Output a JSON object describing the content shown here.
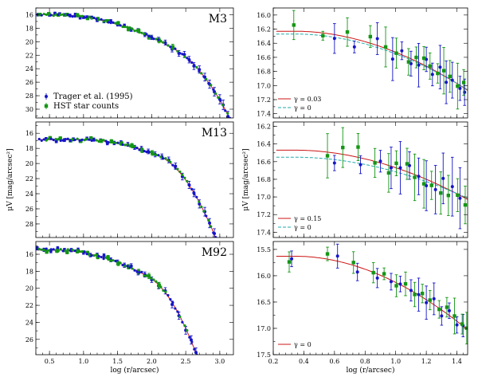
{
  "colors": {
    "trager": "#1515c8",
    "hst": "#149614",
    "fit1": "#cc1414",
    "fit2": "#22aaaa",
    "axis": "#000000"
  },
  "chart_data": [
    {
      "id": "left-m3",
      "type": "scatter",
      "title": "M3",
      "xlim": [
        0.3,
        3.2
      ],
      "ylim": [
        31.3,
        15.0
      ],
      "yticks": [
        16,
        18,
        20,
        22,
        24,
        26,
        28,
        30
      ],
      "ylabels": [
        "16",
        "18",
        "20",
        "22",
        "24",
        "26",
        "28",
        "30"
      ],
      "xticks": [
        0.5,
        1.0,
        1.5,
        2.0,
        2.5,
        3.0
      ],
      "xlabels": [],
      "legend": {
        "trager": "Trager et al. (1995)",
        "hst": "HST star counts"
      },
      "profile": {
        "mu0": 16.0,
        "rc": 0.55,
        "rt": 3.25,
        "slope": 8.0
      },
      "trager_x": [
        0.33,
        0.5,
        0.58,
        0.65,
        0.72,
        0.8,
        0.88,
        0.95,
        1.0,
        1.05,
        1.12,
        1.2,
        1.3,
        1.4,
        1.5,
        1.6,
        1.7,
        1.8,
        1.9,
        2.0,
        2.1,
        2.2,
        2.3,
        2.4,
        2.48,
        2.55,
        2.62,
        2.7,
        2.78,
        2.85,
        2.92,
        3.0,
        3.05,
        3.12
      ],
      "hst_x": [
        0.35,
        0.48,
        0.62,
        0.75,
        0.9,
        1.05,
        1.2,
        1.35,
        1.5,
        1.65,
        1.8,
        1.95,
        2.1,
        2.3
      ],
      "fit": [
        {
          "label": "",
          "color": "fit1"
        }
      ]
    },
    {
      "id": "left-m13",
      "type": "scatter",
      "title": "M13",
      "xlim": [
        0.3,
        3.2
      ],
      "ylim": [
        29.8,
        14.5
      ],
      "yticks": [
        16,
        18,
        20,
        22,
        24,
        26,
        28
      ],
      "ylabels": [
        "16",
        "18",
        "20",
        "22",
        "24",
        "26",
        "28"
      ],
      "xticks": [
        0.5,
        1.0,
        1.5,
        2.0,
        2.5,
        3.0
      ],
      "xlabels": [],
      "ylabel": "μV [mag/arcsec²]",
      "profile": {
        "mu0": 16.85,
        "rc": 0.95,
        "rt": 3.0,
        "slope": 10.5
      },
      "trager_x": [
        0.45,
        0.6,
        0.72,
        0.85,
        0.95,
        1.05,
        1.15,
        1.25,
        1.35,
        1.45,
        1.55,
        1.65,
        1.75,
        1.85,
        1.95,
        2.05,
        2.15,
        2.25,
        2.35,
        2.45,
        2.55,
        2.62,
        2.7,
        2.78,
        2.85,
        2.92,
        2.98
      ],
      "hst_x": [
        0.5,
        0.65,
        0.8,
        0.95,
        1.1,
        1.25,
        1.4,
        1.55,
        1.7,
        1.85,
        2.0
      ],
      "fit": [
        {
          "label": "",
          "color": "fit1"
        }
      ]
    },
    {
      "id": "left-m92",
      "type": "scatter",
      "title": "M92",
      "xlim": [
        0.3,
        3.2
      ],
      "ylim": [
        27.8,
        14.5
      ],
      "yticks": [
        16,
        18,
        20,
        22,
        24,
        26
      ],
      "ylabels": [
        "16",
        "18",
        "20",
        "22",
        "24",
        "26"
      ],
      "xticks": [
        0.5,
        1.0,
        1.5,
        2.0,
        2.5,
        3.0
      ],
      "xlabels": [
        "0.5",
        "1.0",
        "1.5",
        "2.0",
        "2.5",
        "3.0"
      ],
      "xlabel": "log (r/arcsec)",
      "profile": {
        "mu0": 15.5,
        "rc": 0.55,
        "rt": 2.85,
        "slope": 11.5
      },
      "trager_x": [
        0.32,
        0.42,
        0.52,
        0.62,
        0.72,
        0.82,
        0.92,
        1.0,
        1.1,
        1.2,
        1.3,
        1.4,
        1.5,
        1.6,
        1.7,
        1.8,
        1.9,
        2.0,
        2.1,
        2.2,
        2.3,
        2.4,
        2.5,
        2.58,
        2.65,
        2.72
      ],
      "hst_x": [
        0.45,
        0.6,
        0.75,
        0.9,
        1.05,
        1.2,
        1.35,
        1.5,
        1.65,
        1.8,
        1.95,
        2.1
      ],
      "fit": [
        {
          "label": "",
          "color": "fit1"
        }
      ]
    },
    {
      "id": "right-m3",
      "type": "scatter",
      "xlim": [
        0.2,
        1.47
      ],
      "ylim": [
        17.46,
        15.9
      ],
      "yticks": [
        16.0,
        16.2,
        16.4,
        16.6,
        16.8,
        17.0,
        17.2,
        17.4
      ],
      "ylabels": [
        "16.0",
        "16.2",
        "16.4",
        "16.6",
        "16.8",
        "17.0",
        "17.2",
        "17.4"
      ],
      "xticks": [
        0.2,
        0.4,
        0.6,
        0.8,
        1.0,
        1.2,
        1.4
      ],
      "xlabels": [],
      "fit": [
        {
          "label": "γ = 0.03",
          "color": "fit1",
          "y0": 16.23,
          "slope": 0.9
        },
        {
          "label": "γ = 0",
          "color": "fit2",
          "y0": 16.27,
          "slope": 0.85
        }
      ],
      "trager_x": [
        0.6,
        0.73,
        0.88,
        0.98,
        1.04,
        1.1,
        1.15,
        1.2,
        1.24,
        1.29,
        1.33,
        1.37,
        1.42,
        1.45
      ],
      "hst_x": [
        0.33,
        0.52,
        0.68,
        0.83,
        0.93,
        1.0,
        1.08,
        1.13,
        1.18,
        1.22,
        1.27,
        1.31,
        1.35,
        1.4,
        1.44
      ]
    },
    {
      "id": "right-m13",
      "type": "scatter",
      "xlim": [
        0.2,
        1.47
      ],
      "ylim": [
        17.46,
        16.15
      ],
      "yticks": [
        16.2,
        16.4,
        16.6,
        16.8,
        17.0,
        17.2,
        17.4
      ],
      "ylabels": [
        "16.2",
        "16.4",
        "16.6",
        "16.8",
        "17.0",
        "17.2",
        "17.4"
      ],
      "xticks": [
        0.2,
        0.4,
        0.6,
        0.8,
        1.0,
        1.2,
        1.4
      ],
      "xlabels": [],
      "ylabel": "μV [mag/arcsec²]",
      "fit": [
        {
          "label": "γ = 0.15",
          "color": "fit1",
          "y0": 16.47,
          "slope": 0.6
        },
        {
          "label": "γ = 0",
          "color": "fit2",
          "y0": 16.55,
          "slope": 0.5
        }
      ],
      "trager_x": [
        0.6,
        0.77,
        0.9,
        0.97,
        1.03,
        1.09,
        1.15,
        1.2,
        1.26,
        1.31,
        1.37,
        1.42
      ],
      "hst_x": [
        0.55,
        0.65,
        0.75,
        0.86,
        0.95,
        1.0,
        1.07,
        1.12,
        1.18,
        1.23,
        1.29,
        1.34,
        1.4,
        1.45
      ]
    },
    {
      "id": "right-m92",
      "type": "scatter",
      "xlim": [
        0.2,
        1.47
      ],
      "ylim": [
        17.5,
        15.35
      ],
      "yticks": [
        15.5,
        16.0,
        16.5,
        17.0,
        17.5
      ],
      "ylabels": [
        "15.5",
        "16.0",
        "16.5",
        "17.0",
        "17.5"
      ],
      "xticks": [
        0.2,
        0.4,
        0.6,
        0.8,
        1.0,
        1.2,
        1.4
      ],
      "xlabels": [
        "0.2",
        "0.4",
        "0.6",
        "0.8",
        "1.0",
        "1.2",
        "1.4"
      ],
      "xlabel": "log (r/arcsec)",
      "fit": [
        {
          "label": "γ = 0",
          "color": "fit1",
          "y0": 15.63,
          "slope": 1.5
        }
      ],
      "trager_x": [
        0.32,
        0.62,
        0.75,
        0.88,
        0.97,
        1.03,
        1.1,
        1.15,
        1.2,
        1.25,
        1.3,
        1.35,
        1.4,
        1.44
      ],
      "hst_x": [
        0.3,
        0.55,
        0.72,
        0.85,
        0.92,
        1.0,
        1.06,
        1.12,
        1.17,
        1.22,
        1.28,
        1.33,
        1.38,
        1.43,
        1.46
      ]
    }
  ]
}
